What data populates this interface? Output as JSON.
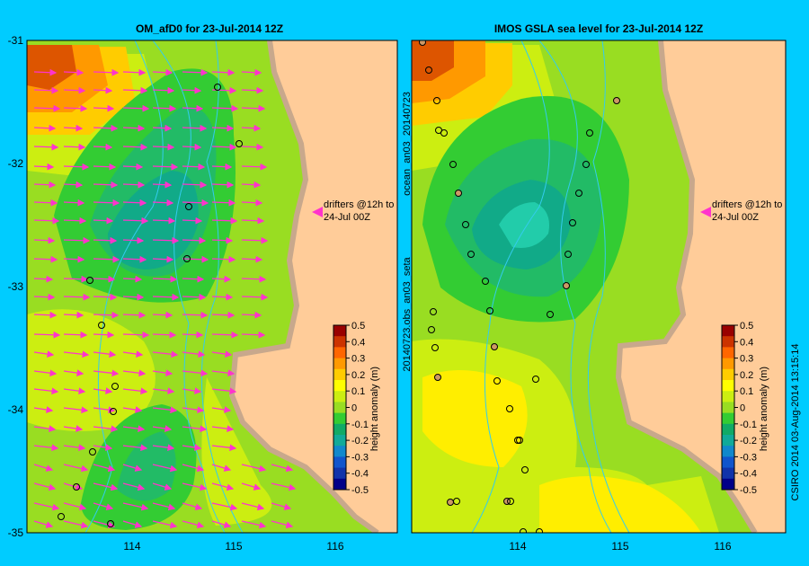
{
  "colors": {
    "background": "#00ccff",
    "land": "#ffcc99",
    "coast": "#c8a88c",
    "arrow": "#ff33cc",
    "contour": "#33ccee"
  },
  "chart_data": [
    {
      "type": "heatmap",
      "title": "OM_afD0 for 23-Jul-2014 12Z",
      "xlim": [
        113.0,
        116.65
      ],
      "ylim": [
        -35,
        -31
      ],
      "x_ticks": [
        "114",
        "115",
        "116"
      ],
      "y_ticks": [
        "-31",
        "-32",
        "-33",
        "-34",
        "-35"
      ],
      "annotation": [
        "drifters @12h to",
        "24-Jul 00Z"
      ],
      "colorbar": {
        "label": "height anomaly (m)",
        "ticks": [
          "0.5",
          "0.4",
          "0.3",
          "0.2",
          "0.1",
          "0",
          "-0.1",
          "-0.2",
          "-0.3",
          "-0.4",
          "-0.5"
        ],
        "range": [
          -0.5,
          0.5
        ]
      }
    },
    {
      "type": "heatmap",
      "title": "IMOS GSLA sea level  for 23-Jul-2014 12Z",
      "xlim": [
        112.95,
        116.6
      ],
      "ylim": [
        -35,
        -31
      ],
      "x_ticks": [
        "114",
        "115",
        "116"
      ],
      "side_labels": [
        "ocean_an03_20140723",
        "20140723.obs_an03_seta"
      ],
      "annotation": [
        "drifters @12h to",
        "24-Jul 00Z"
      ],
      "colorbar": {
        "label": "height anomaly (m)",
        "ticks": [
          "0.5",
          "0.4",
          "0.3",
          "0.2",
          "0.1",
          "0",
          "-0.1",
          "-0.2",
          "-0.3",
          "-0.4",
          "-0.5"
        ],
        "range": [
          -0.5,
          0.5
        ]
      }
    }
  ],
  "credit": "CSIRO 2014    03-Aug-2014 13:15:14"
}
